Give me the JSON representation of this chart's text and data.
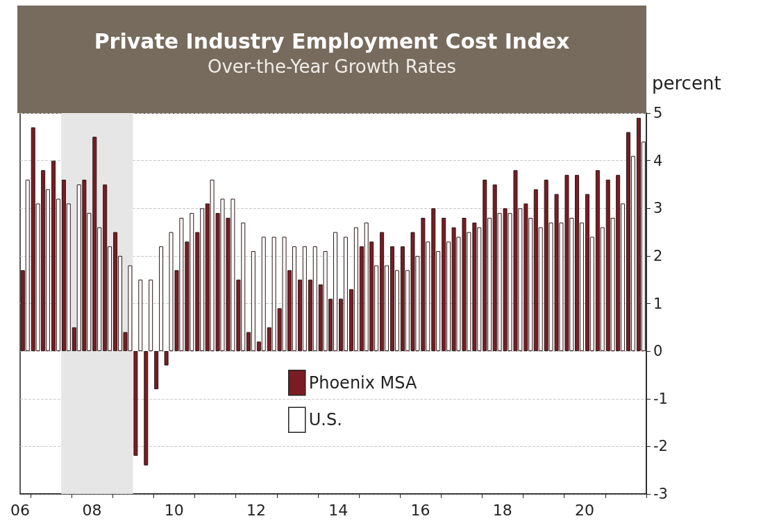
{
  "chart_data": {
    "type": "bar",
    "title": "Private Industry Employment Cost Index",
    "subtitle": "Over-the-Year Growth Rates",
    "ylabel": "percent",
    "x": [
      "2006-11-15",
      "2007-02-15",
      "2007-05-15",
      "2007-08-15",
      "2007-11-15",
      "2008-02-15",
      "2008-05-15",
      "2008-08-15",
      "2008-11-15",
      "2009-02-15",
      "2009-05-15",
      "2009-08-15",
      "2009-11-15",
      "2010-02-15",
      "2010-05-15",
      "2010-08-15",
      "2010-11-15",
      "2011-02-15",
      "2011-05-15",
      "2011-08-15",
      "2011-11-15",
      "2012-02-15",
      "2012-05-15",
      "2012-08-15",
      "2012-11-15",
      "2013-02-15",
      "2013-05-15",
      "2013-08-15",
      "2013-11-15",
      "2014-02-15",
      "2014-05-15",
      "2014-08-15",
      "2014-11-15",
      "2015-02-15",
      "2015-05-15",
      "2015-08-15",
      "2015-11-15",
      "2016-02-15",
      "2016-05-15",
      "2016-08-15",
      "2016-11-15",
      "2017-02-15",
      "2017-05-15",
      "2017-08-15",
      "2017-11-15",
      "2018-02-15",
      "2018-05-15",
      "2018-08-15",
      "2018-11-15",
      "2019-02-15",
      "2019-05-15",
      "2019-08-15",
      "2019-11-15",
      "2020-02-15",
      "2020-05-15",
      "2020-08-15",
      "2020-11-15",
      "2021-02-15",
      "2021-05-15",
      "2021-08-15",
      "2021-11-15"
    ],
    "series": [
      {
        "name": "Phoenix MSA",
        "color": "#7a1c22",
        "values": [
          1.7,
          4.7,
          3.8,
          4.0,
          3.6,
          0.5,
          3.6,
          4.5,
          3.5,
          2.5,
          0.4,
          -2.2,
          -2.4,
          -0.8,
          -0.3,
          1.7,
          2.3,
          2.5,
          3.1,
          2.9,
          2.8,
          1.5,
          0.4,
          0.2,
          0.5,
          0.9,
          1.7,
          1.5,
          1.5,
          1.4,
          1.1,
          1.1,
          1.3,
          2.2,
          2.3,
          2.5,
          2.2,
          2.2,
          2.5,
          2.8,
          3.0,
          2.8,
          2.6,
          2.8,
          2.7,
          3.6,
          3.5,
          3.0,
          3.8,
          3.1,
          3.4,
          3.6,
          3.3,
          3.7,
          3.7,
          3.3,
          3.8,
          3.6,
          3.7,
          4.6,
          4.9
        ]
      },
      {
        "name": "U.S.",
        "color": "#ffffff",
        "values": [
          3.6,
          3.1,
          3.4,
          3.2,
          3.1,
          3.5,
          2.9,
          2.6,
          2.2,
          2.0,
          1.8,
          1.5,
          1.5,
          2.2,
          2.5,
          2.8,
          2.9,
          3.0,
          3.6,
          3.2,
          3.2,
          2.7,
          2.1,
          2.4,
          2.4,
          2.4,
          2.2,
          2.2,
          2.2,
          2.1,
          2.5,
          2.4,
          2.6,
          2.7,
          1.8,
          1.8,
          1.7,
          1.7,
          2.0,
          2.3,
          2.1,
          2.3,
          2.4,
          2.5,
          2.6,
          2.8,
          2.9,
          2.9,
          3.0,
          2.8,
          2.6,
          2.7,
          2.7,
          2.8,
          2.7,
          2.4,
          2.6,
          2.8,
          3.1,
          4.1,
          4.4
        ]
      }
    ],
    "xlim": [
      "2006-10-01",
      "2022-01-01"
    ],
    "xticks": [
      {
        "value": "2006-10-01",
        "label": "06"
      },
      {
        "value": "2007-01-01",
        "label": null
      },
      {
        "value": "2008-01-01",
        "label": null
      },
      {
        "value": "2008-07-01",
        "label": "08"
      },
      {
        "value": "2009-01-01",
        "label": null
      },
      {
        "value": "2010-01-01",
        "label": null
      },
      {
        "value": "2010-07-01",
        "label": "10"
      },
      {
        "value": "2011-01-01",
        "label": null
      },
      {
        "value": "2012-01-01",
        "label": null
      },
      {
        "value": "2012-07-01",
        "label": "12"
      },
      {
        "value": "2013-01-01",
        "label": null
      },
      {
        "value": "2014-01-01",
        "label": null
      },
      {
        "value": "2014-07-01",
        "label": "14"
      },
      {
        "value": "2015-01-01",
        "label": null
      },
      {
        "value": "2016-01-01",
        "label": null
      },
      {
        "value": "2016-07-01",
        "label": "16"
      },
      {
        "value": "2017-01-01",
        "label": null
      },
      {
        "value": "2018-01-01",
        "label": null
      },
      {
        "value": "2018-07-01",
        "label": "18"
      },
      {
        "value": "2019-01-01",
        "label": null
      },
      {
        "value": "2020-01-01",
        "label": null
      },
      {
        "value": "2020-07-01",
        "label": "20"
      },
      {
        "value": "2021-01-01",
        "label": null
      },
      {
        "value": "2022-01-01",
        "label": null
      }
    ],
    "ylim": [
      -3,
      5
    ],
    "yticks": [
      -3,
      -2,
      -1,
      0,
      1,
      2,
      3,
      4,
      5
    ],
    "bands": [
      {
        "axis": "x",
        "from": "2007-10-01",
        "to": "2009-07-01",
        "color": "#e6e6e6"
      }
    ],
    "grid": "y",
    "legend": "bottom"
  }
}
